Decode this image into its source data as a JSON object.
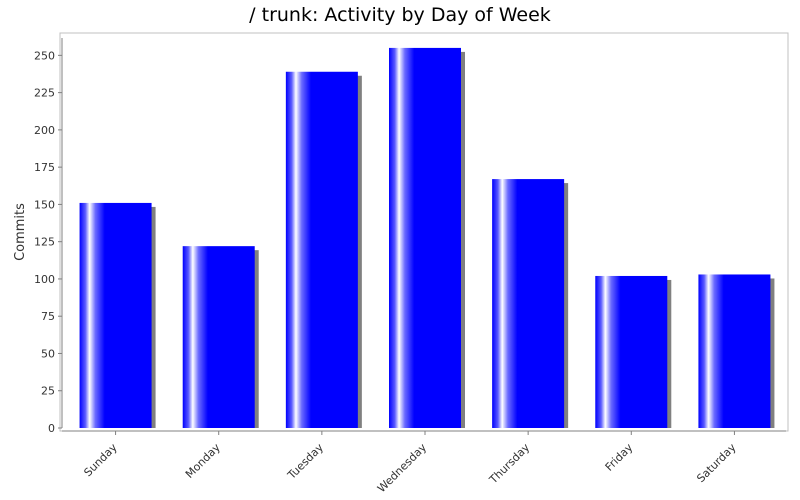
{
  "chart_data": {
    "type": "bar",
    "title": "/ trunk: Activity by Day of Week",
    "xlabel": "",
    "ylabel": "Commits",
    "categories": [
      "Sunday",
      "Monday",
      "Tuesday",
      "Wednesday",
      "Thursday",
      "Friday",
      "Saturday"
    ],
    "series": [
      {
        "values": [
          151,
          122,
          239,
          255,
          167,
          102,
          103
        ]
      }
    ],
    "ylim": [
      0,
      265
    ],
    "yticks": [
      0,
      25,
      50,
      75,
      100,
      125,
      150,
      175,
      200,
      225,
      250
    ],
    "grid": false,
    "legend": "none",
    "colors": {
      "bar": "#0000ff",
      "highlight": "#ffffff",
      "shadow": "#808080",
      "axis": "#808080",
      "text": "#333333"
    }
  }
}
